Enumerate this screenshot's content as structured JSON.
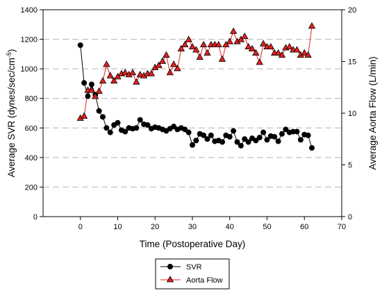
{
  "chart_data": {
    "type": "line",
    "title": "",
    "xlabel": "Time (Postoperative Day)",
    "ylabel_left": "Average SVR (dynes/sec/cm",
    "ylabel_left_superscript": "-5",
    "ylabel_left_suffix": ")",
    "ylabel_right": "Average Aorta Flow (L/min)",
    "xlim": [
      -10,
      70
    ],
    "ylim_left": [
      0,
      1400
    ],
    "ylim_right": [
      0,
      20
    ],
    "x_ticks": [
      0,
      10,
      20,
      30,
      40,
      50,
      60,
      70
    ],
    "y_left_ticks": [
      0,
      200,
      400,
      600,
      800,
      1000,
      1200,
      1400
    ],
    "y_right_ticks": [
      0,
      5,
      10,
      15,
      20
    ],
    "grid": "horizontal dashed",
    "legend_position": "bottom-center",
    "series": [
      {
        "name": "SVR",
        "axis": "left",
        "color": "#000000",
        "marker": "circle",
        "x": [
          0,
          1,
          2,
          3,
          4,
          5,
          6,
          7,
          8,
          9,
          10,
          11,
          12,
          13,
          14,
          15,
          16,
          17,
          18,
          19,
          20,
          21,
          22,
          23,
          24,
          25,
          26,
          27,
          28,
          29,
          30,
          31,
          32,
          33,
          34,
          35,
          36,
          37,
          38,
          39,
          40,
          41,
          42,
          43,
          44,
          45,
          46,
          47,
          48,
          49,
          50,
          51,
          52,
          53,
          54,
          55,
          56,
          57,
          58,
          59,
          60,
          61,
          62
        ],
        "y": [
          1160,
          905,
          815,
          895,
          825,
          715,
          675,
          600,
          570,
          620,
          635,
          585,
          575,
          600,
          595,
          600,
          655,
          625,
          620,
          595,
          605,
          600,
          590,
          580,
          595,
          610,
          590,
          600,
          590,
          570,
          485,
          515,
          560,
          550,
          525,
          550,
          510,
          515,
          505,
          550,
          540,
          580,
          505,
          480,
          525,
          505,
          530,
          515,
          535,
          570,
          520,
          545,
          540,
          510,
          560,
          590,
          570,
          575,
          575,
          520,
          555,
          550,
          465
        ]
      },
      {
        "name": "Aorta Flow",
        "axis": "right",
        "color": "#e0211e",
        "marker": "triangle",
        "x": [
          0,
          1,
          2,
          3,
          4,
          5,
          6,
          7,
          8,
          9,
          10,
          11,
          12,
          13,
          14,
          15,
          16,
          17,
          18,
          19,
          20,
          21,
          22,
          23,
          24,
          25,
          26,
          27,
          28,
          29,
          30,
          31,
          32,
          33,
          34,
          35,
          36,
          37,
          38,
          39,
          40,
          41,
          42,
          43,
          44,
          45,
          46,
          47,
          48,
          49,
          50,
          51,
          52,
          53,
          54,
          55,
          56,
          57,
          58,
          59,
          60,
          61,
          62
        ],
        "y": [
          9.5,
          9.7,
          12.2,
          12.2,
          11.6,
          12.1,
          13.1,
          14.7,
          13.6,
          13.1,
          13.5,
          13.8,
          13.9,
          13.7,
          13.9,
          13.0,
          13.7,
          13.6,
          13.8,
          13.8,
          14.4,
          14.6,
          15.0,
          15.6,
          13.9,
          14.7,
          14.3,
          16.2,
          16.6,
          17.1,
          16.4,
          16.1,
          15.4,
          16.6,
          15.8,
          16.6,
          16.6,
          16.6,
          15.2,
          16.6,
          16.9,
          17.9,
          16.9,
          17.1,
          17.4,
          16.4,
          16.2,
          15.8,
          14.9,
          16.7,
          16.4,
          16.4,
          15.8,
          15.8,
          15.6,
          16.3,
          16.4,
          16.1,
          16.1,
          15.6,
          15.8,
          15.6,
          18.4
        ]
      }
    ]
  }
}
